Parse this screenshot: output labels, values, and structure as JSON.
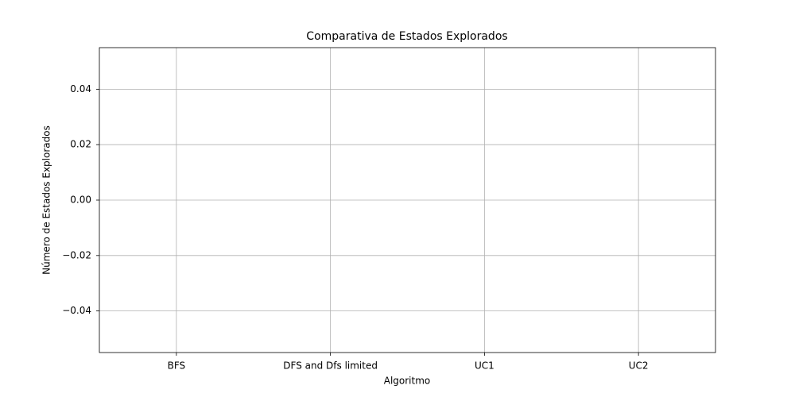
{
  "chart_data": {
    "type": "bar",
    "title": "Comparativa de Estados Explorados",
    "xlabel": "Algoritmo",
    "ylabel": "Número de Estados Explorados",
    "categories": [
      "BFS",
      "DFS and Dfs limited",
      "UC1",
      "UC2"
    ],
    "values": [
      0,
      0,
      0,
      0
    ],
    "ylim": [
      -0.055,
      0.055
    ],
    "yticks": [
      {
        "value": -0.04,
        "label": "−0.04"
      },
      {
        "value": -0.02,
        "label": "−0.02"
      },
      {
        "value": 0,
        "label": "0.00"
      },
      0.02,
      0.04
    ],
    "grid": true
  }
}
